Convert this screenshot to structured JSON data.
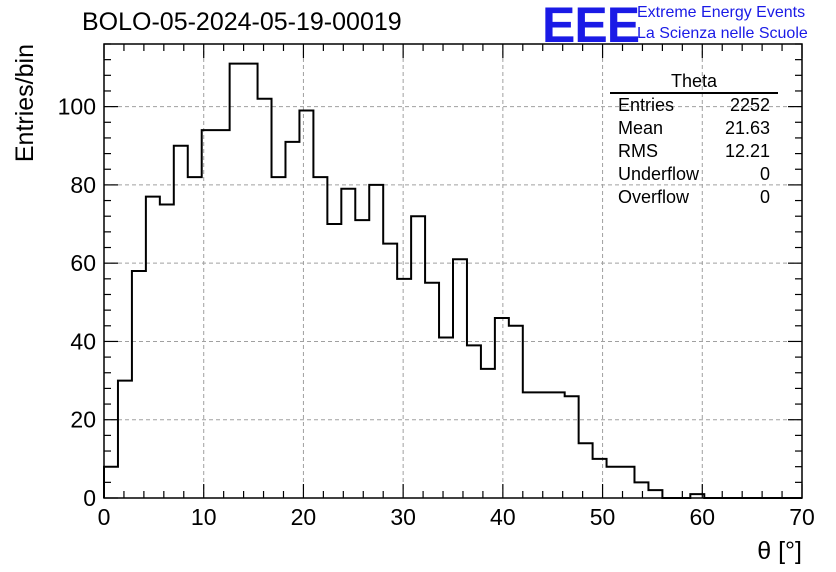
{
  "header": {
    "run_title": "BOLO-05-2024-05-19-00019",
    "logo_text": "EEE",
    "logo_line1": "Extreme Energy Events",
    "logo_line2": "La Scienza nelle Scuole",
    "logo_color": "#1a1ae6"
  },
  "stats_box": {
    "title": "Theta",
    "rows": [
      {
        "label": "Entries",
        "value": "2252"
      },
      {
        "label": "Mean",
        "value": "21.63"
      },
      {
        "label": "RMS",
        "value": "12.21"
      },
      {
        "label": "Underflow",
        "value": "0"
      },
      {
        "label": "Overflow",
        "value": "0"
      }
    ]
  },
  "chart_data": {
    "type": "bar",
    "title": "",
    "xlabel": "θ [°]",
    "ylabel": "Entries/bin",
    "xlim": [
      0,
      70
    ],
    "ylim": [
      0,
      116
    ],
    "x_ticks": [
      0,
      10,
      20,
      30,
      40,
      50,
      60,
      70
    ],
    "y_ticks": [
      0,
      20,
      40,
      60,
      80,
      100
    ],
    "grid": true,
    "histogram": true,
    "bin_width": 1.4,
    "bin_edges_start": 0,
    "values": [
      8,
      30,
      58,
      77,
      75,
      90,
      82,
      94,
      94,
      111,
      111,
      102,
      82,
      91,
      99,
      82,
      70,
      79,
      71,
      80,
      65,
      56,
      72,
      55,
      41,
      61,
      39,
      33,
      46,
      44,
      27,
      27,
      27,
      26,
      14,
      10,
      8,
      8,
      4,
      2,
      0,
      0,
      1,
      0,
      0,
      0,
      0,
      0,
      0,
      0
    ],
    "line_color": "#000000"
  }
}
